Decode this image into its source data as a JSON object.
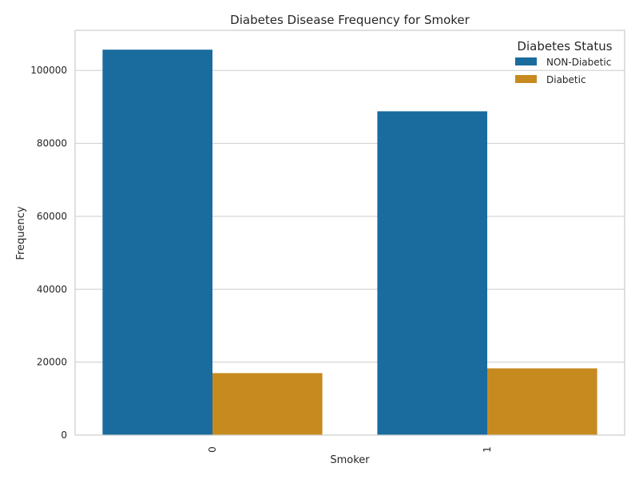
{
  "chart_data": {
    "type": "bar",
    "title": "Diabetes Disease Frequency for Smoker",
    "xlabel": "Smoker",
    "ylabel": "Frequency",
    "categories": [
      "0",
      "1"
    ],
    "series": [
      {
        "name": "NON-Diabetic",
        "color": "#1a6b9e",
        "values": [
          105700,
          88800
        ]
      },
      {
        "name": "Diabetic",
        "color": "#c78a1f",
        "values": [
          17000,
          18300
        ]
      }
    ],
    "ylim": [
      0,
      111000
    ],
    "yticks": [
      0,
      20000,
      40000,
      60000,
      80000,
      100000
    ],
    "grid": "horizontal",
    "legend": {
      "title": "Diabetes Status",
      "placement": "top-right"
    },
    "xtick_rotation": "vertical"
  }
}
